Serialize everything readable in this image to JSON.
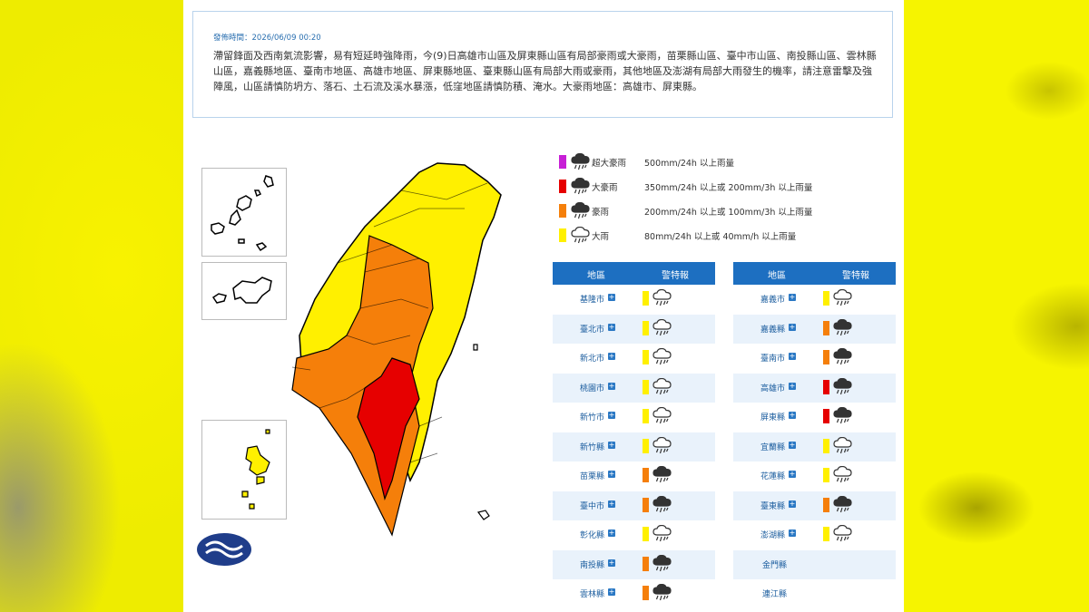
{
  "notice": {
    "time": "發佈時間：2026/06/09 00:20",
    "text": "滯留鋒面及西南氣流影響，易有短延時強降雨，今(9)日高雄市山區及屏東縣山區有局部豪雨或大豪雨，苗栗縣山區、臺中市山區、南投縣山區、雲林縣山區，嘉義縣地區、臺南市地區、高雄市地區、屏東縣地區、臺東縣山區有局部大雨或豪雨，其他地區及澎湖有局部大雨發生的機率，請注意雷擊及強陣風，山區請慎防坍方、落石、土石流及溪水暴漲，低窪地區請慎防積、淹水。大豪雨地區：高雄市、屏東縣。"
  },
  "colors": {
    "super_torrential": "#c71fd6",
    "torrential": "#e60000",
    "extremely_heavy": "#f57f0a",
    "heavy": "#fff000",
    "header_blue": "#1d6fc1"
  },
  "legend": [
    {
      "name": "超大豪雨",
      "threshold": "500mm/24h 以上雨量",
      "level": "super_torrential",
      "icon": "heavy-rain-cloud-icon"
    },
    {
      "name": "大豪雨",
      "threshold": "350mm/24h 以上或 200mm/3h 以上雨量",
      "level": "torrential",
      "icon": "heavy-rain-cloud-icon"
    },
    {
      "name": "豪雨",
      "threshold": "200mm/24h 以上或 100mm/3h 以上雨量",
      "level": "extremely_heavy",
      "icon": "heavy-rain-cloud-icon"
    },
    {
      "name": "大雨",
      "threshold": "80mm/24h 以上或 40mm/h 以上雨量",
      "level": "heavy",
      "icon": "rain-cloud-icon"
    }
  ],
  "table_headers": {
    "region": "地區",
    "warning": "警特報"
  },
  "left_table": [
    {
      "name": "基隆市",
      "level": "heavy"
    },
    {
      "name": "臺北市",
      "level": "heavy"
    },
    {
      "name": "新北市",
      "level": "heavy"
    },
    {
      "name": "桃園市",
      "level": "heavy"
    },
    {
      "name": "新竹市",
      "level": "heavy"
    },
    {
      "name": "新竹縣",
      "level": "heavy"
    },
    {
      "name": "苗栗縣",
      "level": "extremely_heavy"
    },
    {
      "name": "臺中市",
      "level": "extremely_heavy"
    },
    {
      "name": "彰化縣",
      "level": "heavy"
    },
    {
      "name": "南投縣",
      "level": "extremely_heavy"
    },
    {
      "name": "雲林縣",
      "level": "extremely_heavy"
    }
  ],
  "right_table": [
    {
      "name": "嘉義市",
      "level": "heavy"
    },
    {
      "name": "嘉義縣",
      "level": "extremely_heavy"
    },
    {
      "name": "臺南市",
      "level": "extremely_heavy"
    },
    {
      "name": "高雄市",
      "level": "torrential"
    },
    {
      "name": "屏東縣",
      "level": "torrential"
    },
    {
      "name": "宜蘭縣",
      "level": "heavy"
    },
    {
      "name": "花蓮縣",
      "level": "heavy"
    },
    {
      "name": "臺東縣",
      "level": "extremely_heavy"
    },
    {
      "name": "澎湖縣",
      "level": "heavy"
    },
    {
      "name": "金門縣",
      "level": ""
    },
    {
      "name": "連江縣",
      "level": ""
    }
  ]
}
